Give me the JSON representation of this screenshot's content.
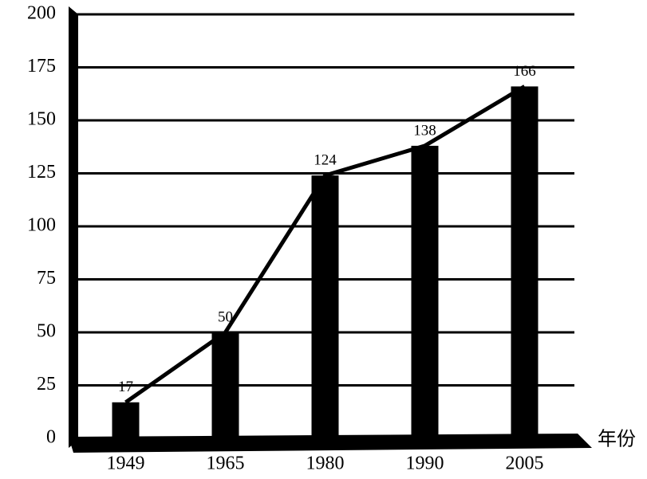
{
  "chart_data": {
    "type": "bar",
    "x_label": "年份",
    "categories": [
      "1949",
      "1965",
      "1980",
      "1990",
      "2005"
    ],
    "values": [
      17,
      50,
      124,
      138,
      166
    ],
    "color": "#000000",
    "line_overlay": true,
    "ylim": [
      0,
      200
    ],
    "yticks": [
      0,
      25,
      50,
      75,
      100,
      125,
      150,
      175,
      200
    ],
    "grid": true
  }
}
